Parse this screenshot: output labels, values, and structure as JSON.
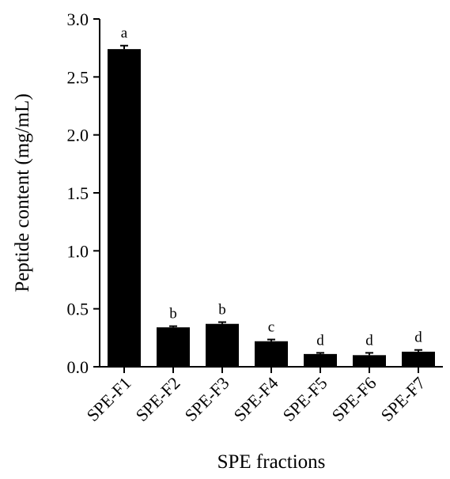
{
  "chart_data": {
    "type": "bar",
    "title": "",
    "xlabel": "SPE fractions",
    "ylabel": "Peptide content (mg/mL)",
    "ylim": [
      0,
      3.0
    ],
    "yticks": [
      "0.0",
      "0.5",
      "1.0",
      "1.5",
      "2.0",
      "2.5",
      "3.0"
    ],
    "categories": [
      "SPE-F1",
      "SPE-F2",
      "SPE-F3",
      "SPE-F4",
      "SPE-F5",
      "SPE-F6",
      "SPE-F7"
    ],
    "values": [
      2.74,
      0.34,
      0.37,
      0.22,
      0.11,
      0.1,
      0.13
    ],
    "errors": [
      0.03,
      0.01,
      0.015,
      0.015,
      0.01,
      0.02,
      0.015
    ],
    "significance": [
      "a",
      "b",
      "b",
      "c",
      "d",
      "d",
      "d"
    ],
    "bar_color": "#000000",
    "grid": false,
    "legend": "none"
  }
}
